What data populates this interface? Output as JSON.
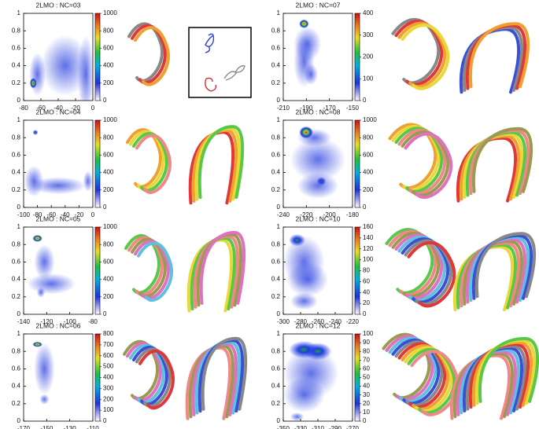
{
  "panels": [
    {
      "title": "2LMO : NC=03",
      "xticks": [
        -80,
        -60,
        -40,
        -20,
        0
      ],
      "yticks": [
        0,
        0.2,
        0.4,
        0.6,
        0.8,
        1
      ],
      "cticks": [
        0,
        200,
        400,
        600,
        800,
        1000
      ]
    },
    {
      "title": "2LMO : NC=07",
      "xticks": [
        -210,
        -190,
        -170,
        -150
      ],
      "yticks": [
        0,
        0.2,
        0.4,
        0.6,
        0.8,
        1
      ],
      "cticks": [
        0,
        100,
        200,
        300,
        400
      ]
    },
    {
      "title": "2LMO : NC=04",
      "xticks": [
        -100,
        -80,
        -60,
        -40,
        -20,
        0
      ],
      "yticks": [
        0,
        0.2,
        0.4,
        0.6,
        0.8,
        1
      ],
      "cticks": [
        0,
        200,
        400,
        600,
        800,
        1000
      ]
    },
    {
      "title": "2LMO : NC=08",
      "xticks": [
        -240,
        -220,
        -200,
        -180
      ],
      "yticks": [
        0,
        0.2,
        0.4,
        0.6,
        0.8,
        1
      ],
      "cticks": [
        0,
        200,
        400,
        600,
        800,
        1000
      ]
    },
    {
      "title": "2LMO : NC=05",
      "xticks": [
        -140,
        -120,
        -100,
        -80
      ],
      "yticks": [
        0,
        0.2,
        0.4,
        0.6,
        0.8,
        1
      ],
      "cticks": [
        0,
        200,
        400,
        600,
        800,
        1000
      ]
    },
    {
      "title": "2LMO : NC=10",
      "xticks": [
        -300,
        -280,
        -260,
        -240,
        -220
      ],
      "yticks": [
        0,
        0.2,
        0.4,
        0.6,
        0.8,
        1
      ],
      "cticks": [
        0,
        20,
        40,
        60,
        80,
        100,
        120,
        140,
        160
      ]
    },
    {
      "title": "2LMO : NC=06",
      "xticks": [
        -170,
        -150,
        -130,
        -110
      ],
      "yticks": [
        0,
        0.2,
        0.4,
        0.6,
        0.8,
        1
      ],
      "cticks": [
        0,
        100,
        200,
        300,
        400,
        500,
        600,
        700,
        800
      ]
    },
    {
      "title": "2LMO : NC=12",
      "xticks": [
        -350,
        -330,
        -310,
        -290,
        -270
      ],
      "yticks": [
        0,
        0.2,
        0.4,
        0.6,
        0.8,
        1
      ],
      "cticks": [
        0,
        10,
        20,
        30,
        40,
        50,
        60,
        70,
        80,
        90,
        100
      ]
    }
  ]
}
